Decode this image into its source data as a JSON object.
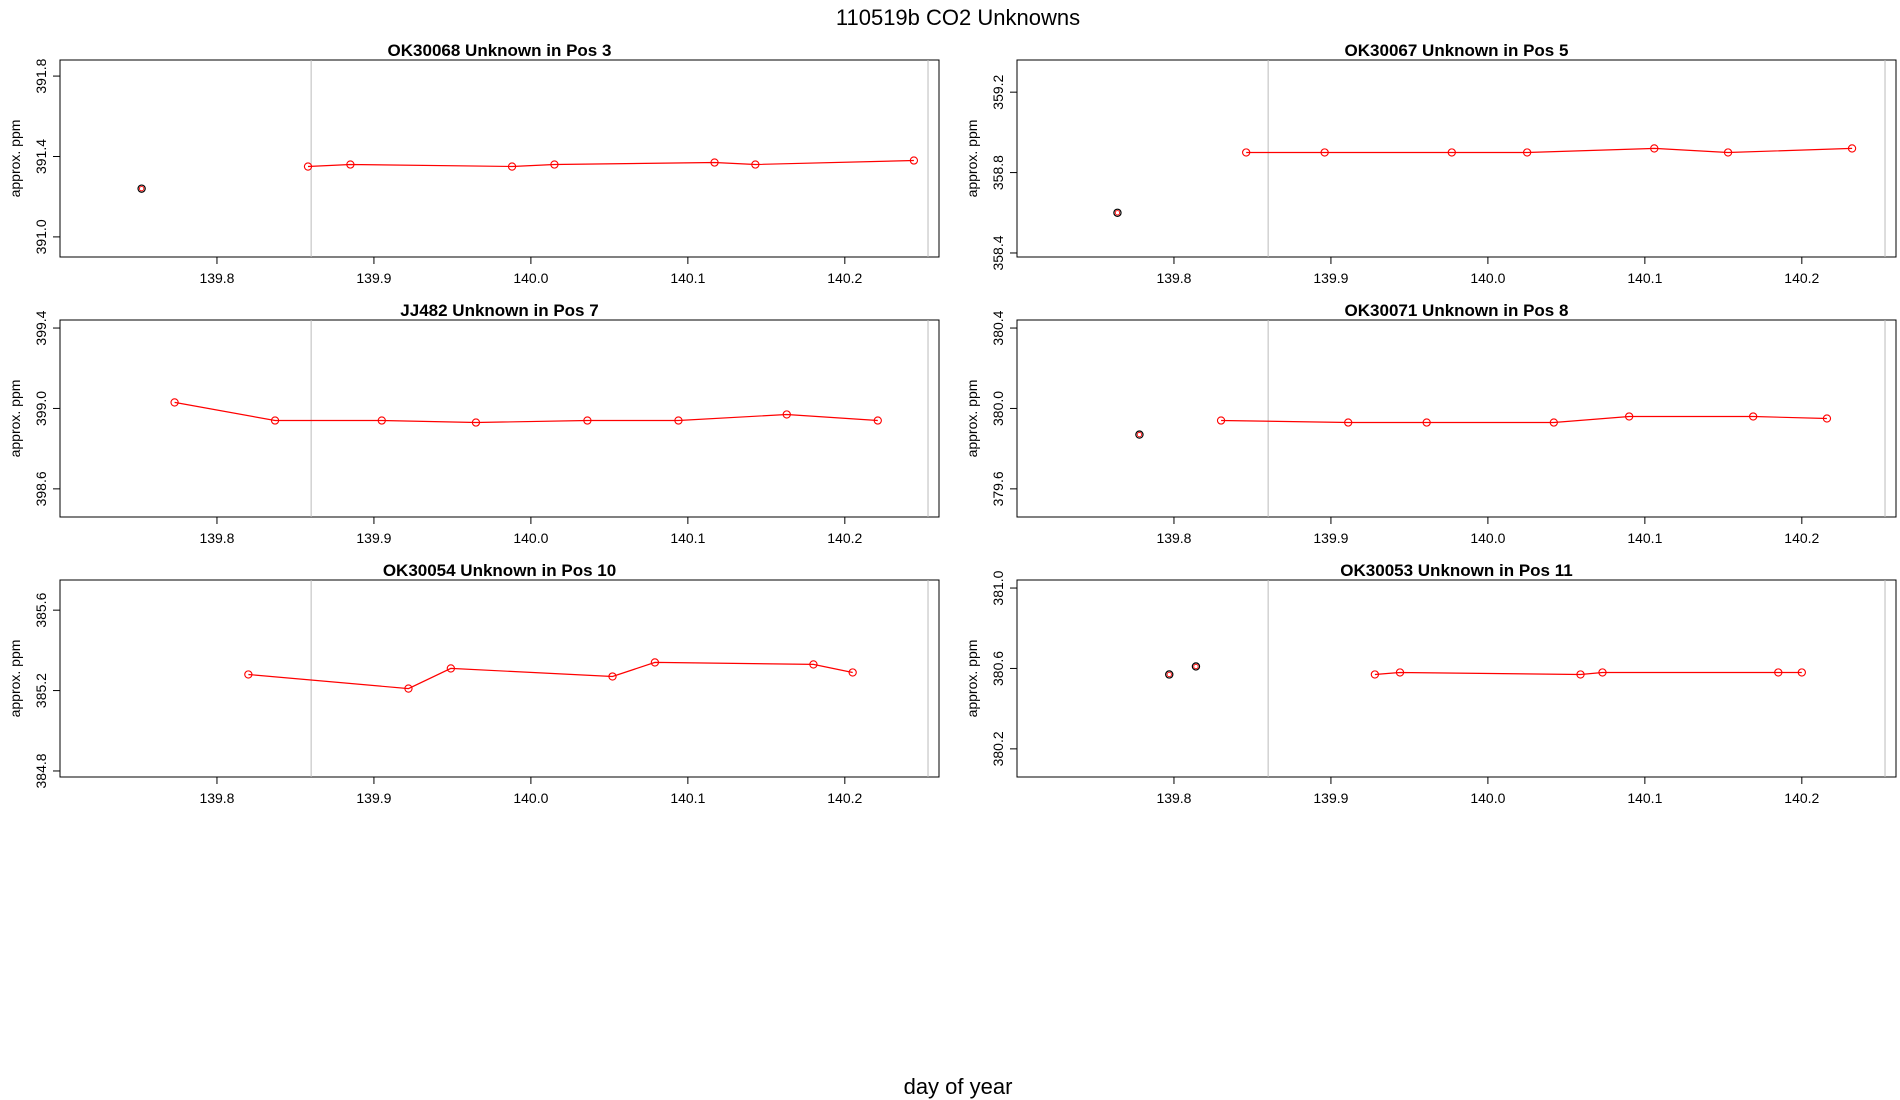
{
  "figure": {
    "title": "110519b  CO2 Unknowns",
    "xlabel": "day of year"
  },
  "chart_data": [
    {
      "type": "line",
      "title": "OK30068    Unknown in Pos 3",
      "ylabel": "approx. ppm",
      "xlim": [
        139.7,
        140.26
      ],
      "ylim": [
        390.9,
        391.88
      ],
      "xticks": [
        "139.8",
        "139.9",
        "140.0",
        "140.1",
        "140.2"
      ],
      "yticks": [
        "391.0",
        "391.4",
        "391.8"
      ],
      "vlines": [
        139.86,
        140.253
      ],
      "colors": {
        "line": "#ff0000",
        "outlier": "#000000"
      },
      "series": [
        {
          "x": [
            139.858,
            139.885,
            139.988,
            140.015,
            140.117,
            140.143,
            140.244
          ],
          "y": [
            391.35,
            391.36,
            391.35,
            391.36,
            391.37,
            391.36,
            391.38
          ]
        }
      ],
      "outliers": {
        "x": [
          139.752
        ],
        "y": [
          391.24
        ]
      }
    },
    {
      "type": "line",
      "title": "OK30067    Unknown in Pos 5",
      "ylabel": "approx. ppm",
      "xlim": [
        139.7,
        140.26
      ],
      "ylim": [
        358.38,
        359.36
      ],
      "xticks": [
        "139.8",
        "139.9",
        "140.0",
        "140.1",
        "140.2"
      ],
      "yticks": [
        "358.4",
        "358.8",
        "359.2"
      ],
      "vlines": [
        139.86,
        140.253
      ],
      "colors": {
        "line": "#ff0000",
        "outlier": "#000000"
      },
      "series": [
        {
          "x": [
            139.846,
            139.896,
            139.977,
            140.025,
            140.106,
            140.153,
            140.232
          ],
          "y": [
            358.9,
            358.9,
            358.9,
            358.9,
            358.92,
            358.9,
            358.92
          ]
        }
      ],
      "outliers": {
        "x": [
          139.764
        ],
        "y": [
          358.6
        ]
      }
    },
    {
      "type": "line",
      "title": "JJ482    Unknown in Pos 7",
      "ylabel": "approx. ppm",
      "xlim": [
        139.7,
        140.26
      ],
      "ylim": [
        398.46,
        399.44
      ],
      "xticks": [
        "139.8",
        "139.9",
        "140.0",
        "140.1",
        "140.2"
      ],
      "yticks": [
        "398.6",
        "399.0",
        "399.4"
      ],
      "vlines": [
        139.86,
        140.253
      ],
      "colors": {
        "line": "#ff0000",
        "outlier": "#000000"
      },
      "series": [
        {
          "x": [
            139.773,
            139.837,
            139.905,
            139.965,
            140.036,
            140.094,
            140.163,
            140.221
          ],
          "y": [
            399.03,
            398.94,
            398.94,
            398.93,
            398.94,
            398.94,
            398.97,
            398.94
          ]
        }
      ],
      "outliers": {
        "x": [],
        "y": []
      }
    },
    {
      "type": "line",
      "title": "OK30071    Unknown in Pos 8",
      "ylabel": "approx. ppm",
      "xlim": [
        139.7,
        140.26
      ],
      "ylim": [
        379.46,
        380.44
      ],
      "xticks": [
        "139.8",
        "139.9",
        "140.0",
        "140.1",
        "140.2"
      ],
      "yticks": [
        "379.6",
        "380.0",
        "380.4"
      ],
      "vlines": [
        139.86,
        140.253
      ],
      "colors": {
        "line": "#ff0000",
        "outlier": "#000000"
      },
      "series": [
        {
          "x": [
            139.83,
            139.911,
            139.961,
            140.042,
            140.09,
            140.169,
            140.216
          ],
          "y": [
            379.94,
            379.93,
            379.93,
            379.93,
            379.96,
            379.96,
            379.95
          ]
        }
      ],
      "outliers": {
        "x": [
          139.778
        ],
        "y": [
          379.87
        ]
      }
    },
    {
      "type": "line",
      "title": "OK30054    Unknown in Pos 10",
      "ylabel": "approx. ppm",
      "xlim": [
        139.7,
        140.26
      ],
      "ylim": [
        384.77,
        385.75
      ],
      "xticks": [
        "139.8",
        "139.9",
        "140.0",
        "140.1",
        "140.2"
      ],
      "yticks": [
        "384.8",
        "385.2",
        "385.6"
      ],
      "vlines": [
        139.86,
        140.253
      ],
      "colors": {
        "line": "#ff0000",
        "outlier": "#000000"
      },
      "series": [
        {
          "x": [
            139.82,
            139.922,
            139.949,
            140.052,
            140.079,
            140.18,
            140.205
          ],
          "y": [
            385.28,
            385.21,
            385.31,
            385.27,
            385.34,
            385.33,
            385.29
          ]
        }
      ],
      "outliers": {
        "x": [],
        "y": []
      }
    },
    {
      "type": "line",
      "title": "OK30053    Unknown in Pos 11",
      "ylabel": "approx. ppm",
      "xlim": [
        139.7,
        140.26
      ],
      "ylim": [
        380.06,
        381.04
      ],
      "xticks": [
        "139.8",
        "139.9",
        "140.0",
        "140.1",
        "140.2"
      ],
      "yticks": [
        "380.2",
        "380.6",
        "381.0"
      ],
      "vlines": [
        139.86,
        140.253
      ],
      "colors": {
        "line": "#ff0000",
        "outlier": "#000000"
      },
      "series": [
        {
          "x": [
            139.928,
            139.944,
            140.059,
            140.073,
            140.185,
            140.2
          ],
          "y": [
            380.57,
            380.58,
            380.57,
            380.58,
            380.58,
            380.58
          ]
        }
      ],
      "outliers": {
        "x": [
          139.797,
          139.814
        ],
        "y": [
          380.57,
          380.61
        ]
      }
    }
  ]
}
